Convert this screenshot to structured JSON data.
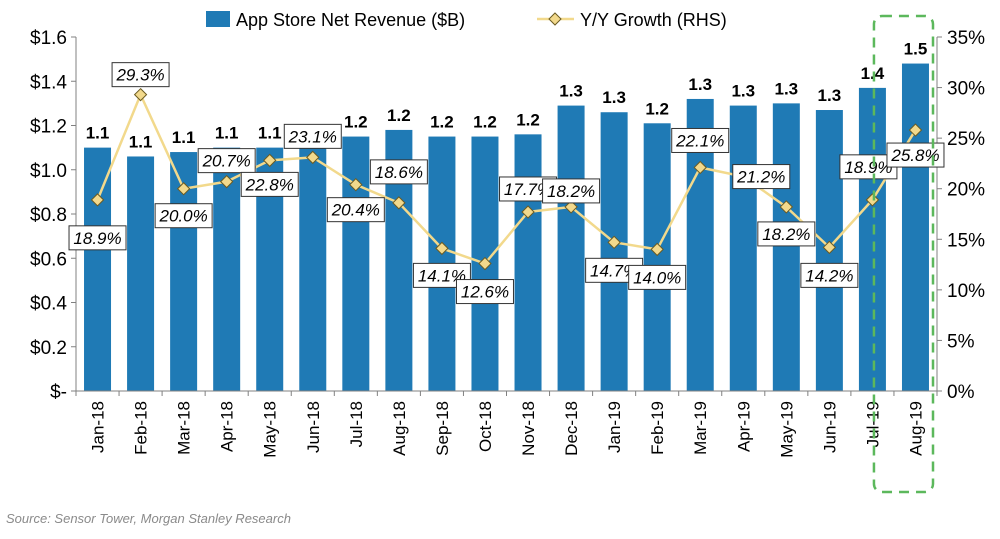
{
  "chart_data": {
    "type": "bar",
    "categories": [
      "Jan-18",
      "Feb-18",
      "Mar-18",
      "Apr-18",
      "May-18",
      "Jun-18",
      "Jul-18",
      "Aug-18",
      "Sep-18",
      "Oct-18",
      "Nov-18",
      "Dec-18",
      "Jan-19",
      "Feb-19",
      "Mar-19",
      "Apr-19",
      "May-19",
      "Jun-19",
      "Jul-19",
      "Aug-19"
    ],
    "series": [
      {
        "name": "App Store Net Revenue ($B)",
        "type": "bar",
        "axis": "left",
        "color": "#1f7ab5",
        "values": [
          1.1,
          1.06,
          1.08,
          1.1,
          1.1,
          1.11,
          1.15,
          1.18,
          1.15,
          1.15,
          1.16,
          1.29,
          1.26,
          1.21,
          1.32,
          1.29,
          1.3,
          1.27,
          1.37,
          1.48
        ],
        "labels": [
          "1.1",
          "1.1",
          "1.1",
          "1.1",
          "1.1",
          "1.1",
          "1.2",
          "1.2",
          "1.2",
          "1.2",
          "1.2",
          "1.3",
          "1.3",
          "1.2",
          "1.3",
          "1.3",
          "1.3",
          "1.3",
          "1.4",
          "1.5"
        ]
      },
      {
        "name": "Y/Y Growth (RHS)",
        "type": "line",
        "axis": "right",
        "color": "#f2d98c",
        "values": [
          18.9,
          29.3,
          20.0,
          20.7,
          22.8,
          23.1,
          20.4,
          18.6,
          14.1,
          12.6,
          17.7,
          18.2,
          14.7,
          14.0,
          22.1,
          21.2,
          18.2,
          14.2,
          18.9,
          25.8
        ],
        "labels": [
          "18.9%",
          "29.3%",
          "20.0%",
          "20.7%",
          "22.8%",
          "23.1%",
          "20.4%",
          "18.6%",
          "14.1%",
          "12.6%",
          "17.7%",
          "18.2%",
          "14.7%",
          "14.0%",
          "22.1%",
          "21.2%",
          "18.2%",
          "14.2%",
          "18.9%",
          "25.8%"
        ]
      }
    ],
    "y_left": {
      "ylim": [
        0,
        1.6
      ],
      "ticks": [
        0,
        0.2,
        0.4,
        0.6,
        0.8,
        1.0,
        1.2,
        1.4,
        1.6
      ],
      "tick_labels": [
        "$-",
        "$0.2",
        "$0.4",
        "$0.6",
        "$0.8",
        "$1.0",
        "$1.2",
        "$1.4",
        "$1.6"
      ]
    },
    "y_right": {
      "ylim": [
        0,
        35
      ],
      "ticks": [
        0,
        5,
        10,
        15,
        20,
        25,
        30,
        35
      ],
      "tick_labels": [
        "0%",
        "5%",
        "10%",
        "15%",
        "20%",
        "25%",
        "30%",
        "35%"
      ]
    },
    "legend": "top-center",
    "grid": false,
    "highlight": {
      "category": "Aug-19",
      "style": "dashed-box",
      "color": "#5cb85c"
    }
  },
  "source": "Source: Sensor Tower, Morgan Stanley Research"
}
